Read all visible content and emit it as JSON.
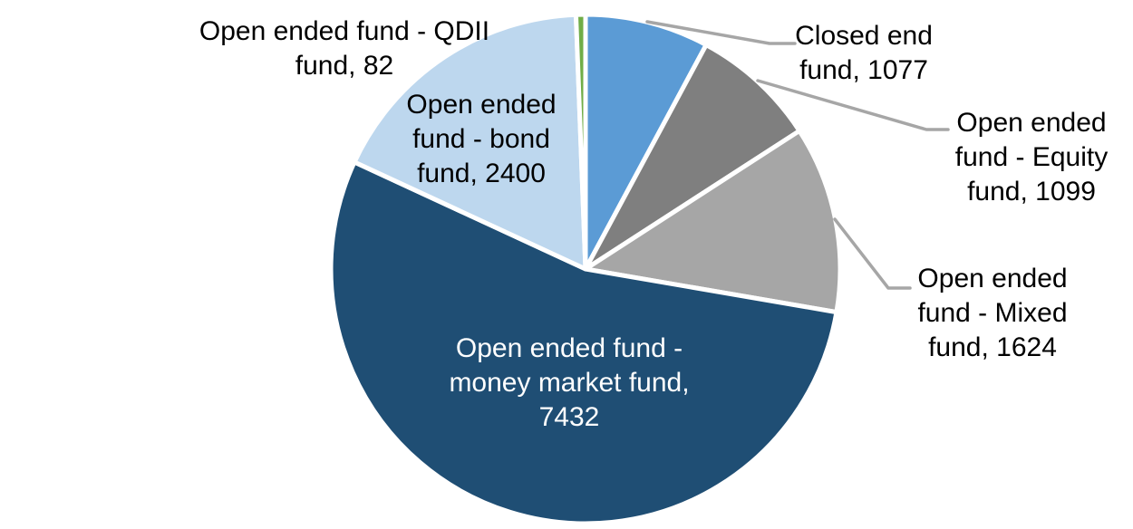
{
  "chart_data": {
    "type": "pie",
    "title": "",
    "legend_position": "none",
    "data_label_format": "category, value",
    "total": 13714,
    "start_angle_deg": 0,
    "direction": "clockwise",
    "background_color": "#FFFFFF",
    "slice_border_color": "#FFFFFF",
    "leader_line_color": "#A6A6A6",
    "slices": [
      {
        "name": "Closed end fund",
        "value": 1077,
        "label": "Closed end fund, 1077",
        "color": "#5B9BD5",
        "label_color": "#000000",
        "label_placement": "outside-right"
      },
      {
        "name": "Open ended fund - Equity fund",
        "value": 1099,
        "label": "Open ended fund - Equity fund, 1099",
        "color": "#7F7F7F",
        "label_color": "#000000",
        "label_placement": "outside-right"
      },
      {
        "name": "Open ended fund - Mixed fund",
        "value": 1624,
        "label": "Open ended fund - Mixed fund, 1624",
        "color": "#A6A6A6",
        "label_color": "#000000",
        "label_placement": "outside-right"
      },
      {
        "name": "Open ended fund - money market fund",
        "value": 7432,
        "label": "Open ended fund - money market fund, 7432",
        "color": "#1F4E74",
        "label_color": "#FFFFFF",
        "label_placement": "inside"
      },
      {
        "name": "Open ended fund - bond fund",
        "value": 2400,
        "label": "Open ended fund - bond fund, 2400",
        "color": "#BDD7EE",
        "label_color": "#000000",
        "label_placement": "on-slice-left"
      },
      {
        "name": "Open ended fund - QDII fund",
        "value": 82,
        "label": "Open ended fund - QDII fund, 82",
        "color": "#70AD47",
        "label_color": "#000000",
        "label_placement": "outside-left"
      }
    ]
  }
}
